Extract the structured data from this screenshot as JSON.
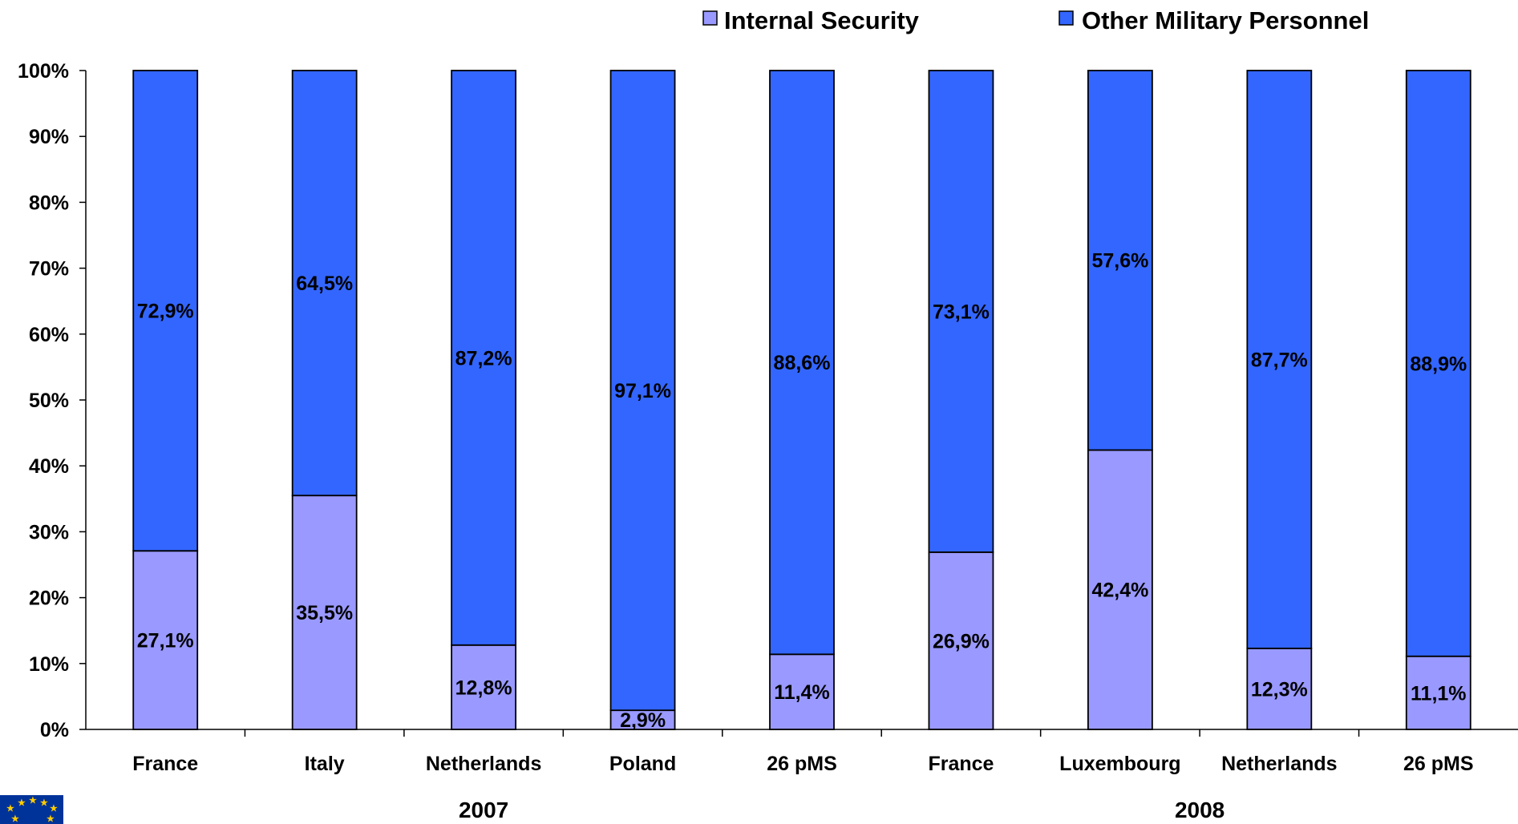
{
  "chart_data": {
    "type": "bar",
    "stacked": true,
    "normalized": true,
    "categories": [
      "France",
      "Italy",
      "Netherlands",
      "Poland",
      "26 pMS",
      "France",
      "Luxembourg",
      "Netherlands",
      "26 pMS"
    ],
    "groups": [
      {
        "label": "2007",
        "categories": [
          "France",
          "Italy",
          "Netherlands",
          "Poland",
          "26 pMS"
        ]
      },
      {
        "label": "2008",
        "categories": [
          "France",
          "Luxembourg",
          "Netherlands",
          "26 pMS"
        ]
      }
    ],
    "series": [
      {
        "name": "Internal Security",
        "color": "#9999ff",
        "values": [
          27.1,
          35.5,
          12.8,
          2.9,
          11.4,
          26.9,
          42.4,
          12.3,
          11.1
        ],
        "labels": [
          "27,1%",
          "35,5%",
          "12,8%",
          "2,9%",
          "11,4%",
          "26,9%",
          "42,4%",
          "12,3%",
          "11,1%"
        ]
      },
      {
        "name": "Other Military Personnel",
        "color": "#3366ff",
        "values": [
          72.9,
          64.5,
          87.2,
          97.1,
          88.6,
          73.1,
          57.6,
          87.7,
          88.9
        ],
        "labels": [
          "72,9%",
          "64,5%",
          "87,2%",
          "97,1%",
          "88,6%",
          "73,1%",
          "57,6%",
          "87,7%",
          "88,9%"
        ]
      }
    ],
    "ylim": [
      0,
      100
    ],
    "yticks": [
      "0%",
      "10%",
      "20%",
      "30%",
      "40%",
      "50%",
      "60%",
      "70%",
      "80%",
      "90%",
      "100%"
    ],
    "grid": false,
    "legend_position": "top-right",
    "title": "",
    "xlabel": "",
    "ylabel": ""
  },
  "logo": {
    "name": "eu-flag-logo"
  }
}
